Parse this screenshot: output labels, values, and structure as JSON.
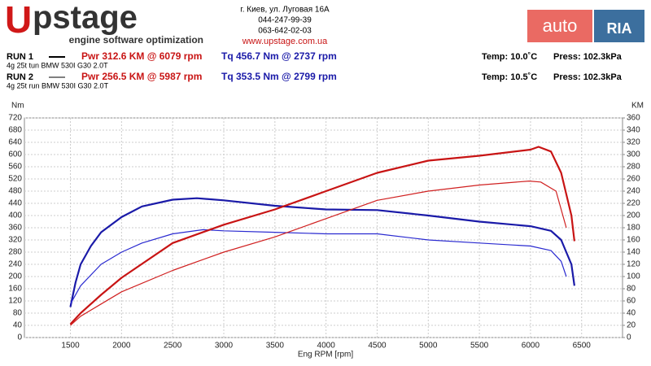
{
  "header": {
    "logo_a": "U",
    "logo_b": "pstage",
    "tagline": "engine software optimization",
    "address": "г. Киев, ул. Луговая 16А",
    "phone1": "044-247-99-39",
    "phone2": "063-642-02-03",
    "site": "www.upstage.com.ua",
    "ria_a": "auto",
    "ria_b": "RIA"
  },
  "runs": [
    {
      "name": "RUN 1",
      "pwr": "Pwr  312.6 KM @ 6079 rpm",
      "tq": "Tq  456.7 Nm @ 2737 rpm",
      "temp": "Temp: 10.0˚C",
      "press": "Press: 102.3kPa",
      "desc": "4g 25t tun BMW 530I G30 2.0T"
    },
    {
      "name": "RUN 2",
      "pwr": "Pwr  256.5 KM @ 5987 rpm",
      "tq": "Tq  353.5 Nm @ 2799 rpm",
      "temp": "Temp: 10.5˚C",
      "press": "Press: 102.3kPa",
      "desc": "4g 25t run BMW 530I G30 2.0T"
    }
  ],
  "chart_data": {
    "type": "line",
    "y_label": "Nm",
    "y2_label": "KM",
    "x_label": "Eng RPM [rpm]",
    "xlim": [
      1050,
      6900
    ],
    "xticks": [
      1500,
      2000,
      2500,
      3000,
      3500,
      4000,
      4500,
      5000,
      5500,
      6000,
      6500
    ],
    "ylim": [
      0,
      720
    ],
    "yticks": [
      0,
      40,
      80,
      120,
      160,
      200,
      240,
      280,
      320,
      360,
      400,
      440,
      480,
      520,
      560,
      600,
      640,
      680,
      720
    ],
    "y2lim": [
      0,
      360
    ],
    "y2ticks": [
      0,
      20,
      40,
      60,
      80,
      100,
      120,
      140,
      160,
      180,
      200,
      220,
      240,
      260,
      280,
      300,
      320,
      340,
      360
    ],
    "grid": true,
    "series": [
      {
        "name": "Tq RUN 1",
        "color": "#1a1aa8",
        "width": 2.2,
        "x": [
          1500,
          1550,
          1600,
          1700,
          1800,
          2000,
          2200,
          2500,
          2737,
          3000,
          3500,
          4000,
          4500,
          5000,
          5500,
          6000,
          6200,
          6300,
          6400,
          6430
        ],
        "values": [
          100,
          180,
          240,
          300,
          345,
          395,
          430,
          452,
          456.7,
          450,
          432,
          420,
          418,
          400,
          380,
          365,
          350,
          320,
          240,
          170
        ]
      },
      {
        "name": "Tq RUN 2",
        "color": "#2a2ad0",
        "width": 1.2,
        "x": [
          1500,
          1600,
          1800,
          2000,
          2200,
          2500,
          2799,
          3000,
          3500,
          4000,
          4500,
          5000,
          5500,
          6000,
          6200,
          6300,
          6350
        ],
        "values": [
          110,
          170,
          240,
          280,
          310,
          340,
          353.5,
          350,
          345,
          340,
          340,
          320,
          310,
          300,
          285,
          250,
          200
        ]
      },
      {
        "name": "Pwr RUN 1",
        "color": "#c81414",
        "width": 2.2,
        "axis": "y2",
        "x": [
          1500,
          1600,
          1800,
          2000,
          2500,
          3000,
          3500,
          4000,
          4500,
          5000,
          5500,
          6000,
          6079,
          6200,
          6300,
          6400,
          6430
        ],
        "values": [
          22,
          40,
          70,
          98,
          155,
          185,
          210,
          240,
          270,
          290,
          298,
          308,
          312.6,
          305,
          270,
          200,
          158
        ]
      },
      {
        "name": "Pwr RUN 2",
        "color": "#d02020",
        "width": 1.2,
        "axis": "y2",
        "x": [
          1500,
          1600,
          1800,
          2000,
          2500,
          3000,
          3500,
          4000,
          4500,
          5000,
          5500,
          5987,
          6100,
          6250,
          6350
        ],
        "values": [
          20,
          35,
          55,
          75,
          110,
          140,
          165,
          195,
          225,
          240,
          250,
          256.5,
          255,
          240,
          180
        ]
      }
    ]
  }
}
